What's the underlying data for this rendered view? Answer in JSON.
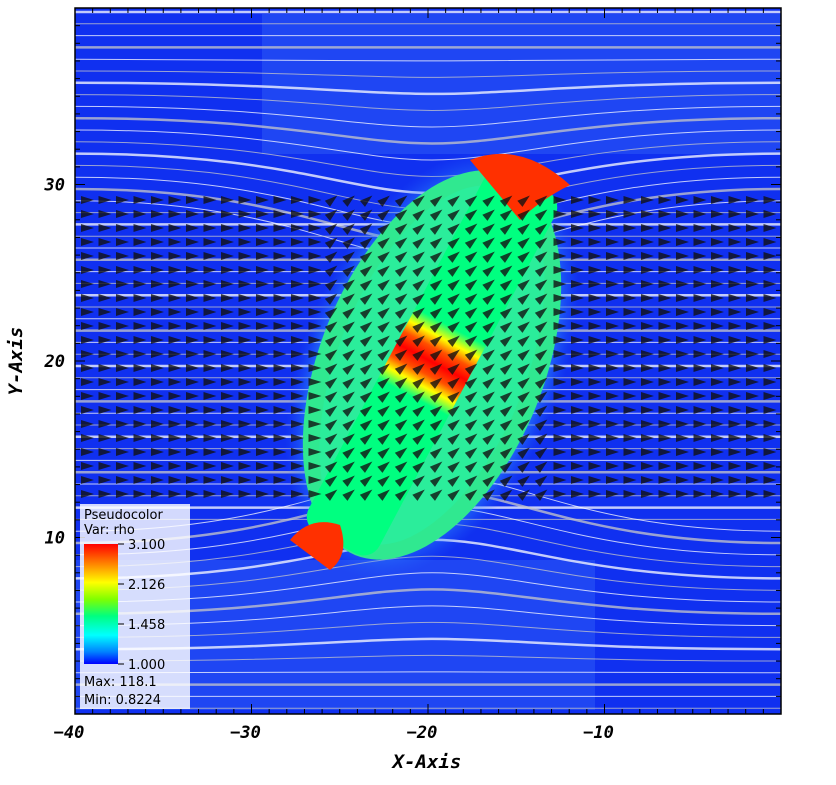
{
  "chart_data": {
    "type": "heatmap",
    "plot": "Pseudocolor",
    "variable": "rho",
    "xlabel": "X-Axis",
    "ylabel": "Y-Axis",
    "xlim": [
      -40,
      0
    ],
    "ylim": [
      0,
      40
    ],
    "x_ticks": [
      -40,
      -30,
      -20,
      -10
    ],
    "y_ticks": [
      10,
      20,
      30
    ],
    "colorbar": {
      "title": "Pseudocolor",
      "var_label": "Var: rho",
      "ticks": [
        "3.100",
        "2.126",
        "1.458",
        "1.000"
      ],
      "max_label": "Max:  118.1",
      "min_label": "Min:  0.8224",
      "max": 118.1,
      "min": 0.8224
    },
    "colormap": [
      "#0000ff",
      "#00bfff",
      "#00ff80",
      "#a0ff00",
      "#ffff00",
      "#ff8000",
      "#ff0000"
    ],
    "background_color": "#1030f0",
    "overlays": [
      "velocity-vectors",
      "field-lines"
    ]
  }
}
